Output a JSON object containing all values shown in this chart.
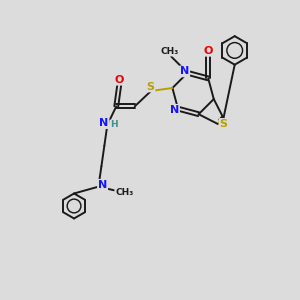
{
  "bg_color": "#dcdcdc",
  "bond_color": "#1a1a1a",
  "N_color": "#1414ff",
  "O_color": "#ee0000",
  "S_color": "#b8a000",
  "H_color": "#409090",
  "figsize": [
    3.0,
    3.0
  ],
  "dpi": 100,
  "lw": 1.4,
  "fs": 8.0,
  "fs_small": 6.5,
  "xlim": [
    0,
    10
  ],
  "ylim": [
    0,
    10
  ]
}
